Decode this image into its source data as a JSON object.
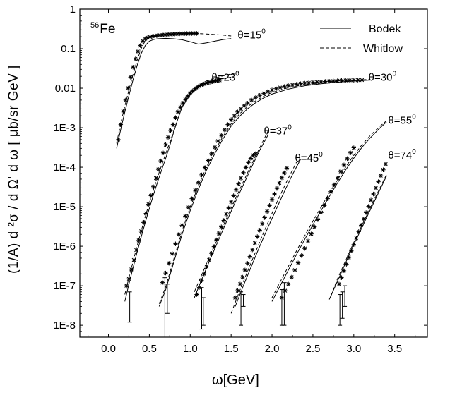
{
  "chart_data": {
    "type": "scatter",
    "xlabel": "ω[GeV]",
    "ylabel": "(1/A) d ²σ / d Ω' d ω [ μb/sr GeV ]",
    "nucleus": {
      "mass_number": "56",
      "symbol": "Fe"
    },
    "xlim": [
      -0.35,
      3.9
    ],
    "ylim": [
      5e-09,
      1
    ],
    "yscale": "log",
    "xticks": [
      0.0,
      0.5,
      1.0,
      1.5,
      2.0,
      2.5,
      3.0,
      3.5
    ],
    "xtick_labels": [
      "0.0",
      "0.5",
      "1.0",
      "1.5",
      "2.0",
      "2.5",
      "3.0",
      "3.5"
    ],
    "yticks": [
      1e-08,
      1e-07,
      1e-06,
      1e-05,
      0.0001,
      0.001,
      0.01,
      0.1,
      1
    ],
    "ytick_labels": [
      "1E-8",
      "1E-7",
      "1E-6",
      "1E-5",
      "1E-4",
      "1E-3",
      "0.01",
      "0.1",
      "1"
    ],
    "grid": false,
    "legend": {
      "position": "top-right",
      "entries": [
        {
          "label": "Bodek",
          "style": "solid"
        },
        {
          "label": "Whitlow",
          "style": "dashed"
        }
      ]
    },
    "series": [
      {
        "angle_label": "θ=15",
        "angle_exp": "0",
        "data_x": [
          0.12,
          0.15,
          0.18,
          0.21,
          0.24,
          0.27,
          0.3,
          0.33,
          0.36,
          0.39,
          0.42,
          0.45,
          0.48,
          0.51,
          0.54,
          0.57,
          0.6,
          0.63,
          0.66,
          0.69,
          0.72,
          0.75,
          0.78,
          0.81,
          0.84,
          0.87,
          0.9,
          0.93,
          0.96,
          0.99,
          1.02,
          1.05,
          1.08
        ],
        "data_y": [
          0.0005,
          0.0012,
          0.0026,
          0.005,
          0.01,
          0.019,
          0.034,
          0.055,
          0.085,
          0.12,
          0.155,
          0.178,
          0.19,
          0.198,
          0.205,
          0.21,
          0.215,
          0.218,
          0.222,
          0.225,
          0.228,
          0.23,
          0.232,
          0.235,
          0.237,
          0.238,
          0.24,
          0.24,
          0.241,
          0.242,
          0.242,
          0.243,
          0.243
        ],
        "bodek_x": [
          0.1,
          0.15,
          0.2,
          0.25,
          0.3,
          0.35,
          0.4,
          0.45,
          0.5,
          0.55,
          0.6,
          0.7,
          0.8,
          0.9,
          1.0,
          1.1,
          1.2,
          1.3,
          1.4,
          1.5
        ],
        "bodek_y": [
          0.0003,
          0.0009,
          0.0025,
          0.0065,
          0.016,
          0.037,
          0.075,
          0.12,
          0.155,
          0.17,
          0.178,
          0.182,
          0.178,
          0.168,
          0.15,
          0.13,
          0.14,
          0.155,
          0.17,
          0.18
        ],
        "whitlow_x": [
          0.1,
          0.15,
          0.2,
          0.25,
          0.3,
          0.35,
          0.4,
          0.45,
          0.5,
          0.55,
          0.6,
          0.7,
          0.8,
          0.9,
          1.0,
          1.1,
          1.2,
          1.3,
          1.4,
          1.5
        ],
        "whitlow_y": [
          0.0004,
          0.0013,
          0.0035,
          0.009,
          0.022,
          0.05,
          0.1,
          0.16,
          0.2,
          0.22,
          0.23,
          0.24,
          0.245,
          0.245,
          0.245,
          0.24,
          0.235,
          0.228,
          0.22,
          0.21
        ]
      },
      {
        "angle_label": "θ=23",
        "angle_exp": "0",
        "data_x": [
          0.22,
          0.25,
          0.28,
          0.31,
          0.34,
          0.37,
          0.4,
          0.43,
          0.46,
          0.49,
          0.52,
          0.55,
          0.58,
          0.61,
          0.64,
          0.67,
          0.7,
          0.73,
          0.76,
          0.79,
          0.82,
          0.85,
          0.88,
          0.91,
          0.94,
          0.97,
          1.0,
          1.03,
          1.06,
          1.09,
          1.12,
          1.15,
          1.18,
          1.21,
          1.24,
          1.27,
          1.3,
          1.33,
          1.36
        ],
        "data_y": [
          1e-07,
          1.5e-07,
          2.6e-07,
          4.5e-07,
          8e-07,
          1.4e-06,
          2.4e-06,
          4e-06,
          6.8e-06,
          1.15e-05,
          1.9e-05,
          3.2e-05,
          5.3e-05,
          8.8e-05,
          0.000145,
          0.00023,
          0.00037,
          0.00057,
          0.00085,
          0.0012,
          0.0018,
          0.0025,
          0.0033,
          0.0042,
          0.0052,
          0.0063,
          0.0075,
          0.0086,
          0.0097,
          0.0107,
          0.0116,
          0.0124,
          0.0131,
          0.0137,
          0.0142,
          0.0147,
          0.0151,
          0.0155,
          0.0158
        ],
        "data_err_x": [
          0.26
        ],
        "data_err_lo": [
          1.2e-08
        ],
        "data_err_hi": [
          7e-08
        ],
        "bodek_x": [
          0.2,
          0.25,
          0.3,
          0.35,
          0.4,
          0.45,
          0.5,
          0.55,
          0.6,
          0.65,
          0.7,
          0.75,
          0.8,
          0.85,
          0.9,
          1.0,
          1.1,
          1.2,
          1.3,
          1.4,
          1.5
        ],
        "bodek_y": [
          4e-08,
          1.1e-07,
          2.8e-07,
          7e-07,
          1.7e-06,
          4e-06,
          9e-06,
          2e-05,
          4.2e-05,
          8.5e-05,
          0.00017,
          0.00035,
          0.0008,
          0.0017,
          0.0033,
          0.0068,
          0.0105,
          0.0135,
          0.0158,
          0.0175,
          0.019
        ],
        "whitlow_x": [
          0.2,
          0.25,
          0.3,
          0.35,
          0.4,
          0.45,
          0.5,
          0.55,
          0.6,
          0.65,
          0.7,
          0.75,
          0.8,
          0.85,
          0.9,
          1.0,
          1.1,
          1.2,
          1.3,
          1.4,
          1.5,
          1.6
        ],
        "whitlow_y": [
          6e-08,
          1.6e-07,
          4e-07,
          1e-06,
          2.4e-06,
          5.6e-06,
          1.25e-05,
          2.7e-05,
          5.6e-05,
          0.000112,
          0.00022,
          0.00042,
          0.00085,
          0.0017,
          0.0034,
          0.0075,
          0.0118,
          0.0153,
          0.018,
          0.0205,
          0.023,
          0.025
        ]
      },
      {
        "angle_label": "θ=30",
        "angle_exp": "0",
        "data_x": [
          0.66,
          0.7,
          0.74,
          0.78,
          0.82,
          0.86,
          0.9,
          0.94,
          0.98,
          1.02,
          1.06,
          1.1,
          1.14,
          1.18,
          1.22,
          1.26,
          1.3,
          1.34,
          1.38,
          1.42,
          1.46,
          1.5,
          1.54,
          1.58,
          1.62,
          1.66,
          1.7,
          1.75,
          1.8,
          1.85,
          1.9,
          1.95,
          2.0,
          2.05,
          2.1,
          2.15,
          2.2,
          2.25,
          2.3,
          2.35,
          2.4,
          2.45,
          2.5,
          2.55,
          2.6,
          2.65,
          2.7,
          2.75,
          2.8,
          2.85,
          2.9,
          2.95,
          3.0,
          3.05,
          3.1
        ],
        "data_y": [
          1.2e-07,
          2.1e-07,
          3.7e-07,
          6.5e-07,
          1.15e-06,
          2e-06,
          3.4e-06,
          5.8e-06,
          9.6e-06,
          1.6e-05,
          2.6e-05,
          4.1e-05,
          6.4e-05,
          9.8e-05,
          0.000148,
          0.00022,
          0.00032,
          0.00046,
          0.00064,
          0.00088,
          0.0012,
          0.0016,
          0.002,
          0.0025,
          0.003,
          0.0036,
          0.0042,
          0.005,
          0.0058,
          0.0066,
          0.0074,
          0.0082,
          0.009,
          0.0097,
          0.0104,
          0.011,
          0.0116,
          0.0121,
          0.0126,
          0.013,
          0.0134,
          0.0137,
          0.014,
          0.0143,
          0.0146,
          0.0148,
          0.015,
          0.0152,
          0.0154,
          0.0156,
          0.0157,
          0.0158,
          0.0159,
          0.016,
          0.0161
        ],
        "data_err_x": [
          0.69,
          0.72
        ],
        "data_err_lo": [
          5e-09,
          2e-08
        ],
        "data_err_hi": [
          1.6e-07,
          1.1e-07
        ],
        "bodek_x": [
          0.62,
          0.7,
          0.8,
          0.9,
          1.0,
          1.1,
          1.2,
          1.3,
          1.4,
          1.5,
          1.6,
          1.7,
          1.8,
          1.9,
          2.0,
          2.2,
          2.4,
          2.6,
          2.8,
          3.0,
          3.2
        ],
        "bodek_y": [
          3e-08,
          8e-08,
          4e-07,
          2e-06,
          8e-06,
          2.8e-05,
          8.5e-05,
          0.00022,
          0.00052,
          0.0011,
          0.0019,
          0.003,
          0.0043,
          0.0057,
          0.0071,
          0.0095,
          0.0115,
          0.013,
          0.0142,
          0.0152,
          0.016
        ],
        "whitlow_x": [
          0.62,
          0.7,
          0.8,
          0.9,
          1.0,
          1.1,
          1.2,
          1.3,
          1.4,
          1.5,
          1.6,
          1.7,
          1.8,
          1.9,
          2.0,
          2.2,
          2.4,
          2.6,
          2.8,
          3.0,
          3.2
        ],
        "whitlow_y": [
          3.5e-08,
          9.5e-08,
          4.8e-07,
          2.4e-06,
          9.8e-06,
          3.4e-05,
          0.000102,
          0.00026,
          0.0006,
          0.00125,
          0.0022,
          0.0034,
          0.0048,
          0.0063,
          0.0078,
          0.0103,
          0.0123,
          0.0138,
          0.015,
          0.0159,
          0.0167
        ]
      },
      {
        "angle_label": "θ=37",
        "angle_exp": "0",
        "data_x": [
          1.08,
          1.11,
          1.14,
          1.17,
          1.2,
          1.23,
          1.26,
          1.29,
          1.32,
          1.35,
          1.38,
          1.41,
          1.44,
          1.47,
          1.5,
          1.53,
          1.56,
          1.59,
          1.62,
          1.65,
          1.68,
          1.71,
          1.74,
          1.77,
          1.8
        ],
        "data_y": [
          6e-08,
          9e-08,
          1.35e-07,
          2e-07,
          3e-07,
          4.5e-07,
          6.6e-07,
          9.8e-07,
          1.45e-06,
          2.1e-06,
          3.1e-06,
          4.5e-06,
          6.5e-06,
          9.3e-06,
          1.33e-05,
          1.9e-05,
          2.7e-05,
          3.8e-05,
          5.3e-05,
          7.3e-05,
          9.9e-05,
          0.000132,
          0.000168,
          0.0002,
          0.00022
        ],
        "data_err_x": [
          1.14,
          1.16
        ],
        "data_err_lo": [
          8e-09,
          1e-08
        ],
        "data_err_hi": [
          9e-08,
          5e-08
        ],
        "bodek_x": [
          1.05,
          1.15,
          1.25,
          1.35,
          1.45,
          1.55,
          1.65,
          1.75,
          1.85,
          1.95
        ],
        "bodek_y": [
          5e-08,
          1.6e-07,
          5e-07,
          1.5e-06,
          4.5e-06,
          1.3e-05,
          3.6e-05,
          0.0001,
          0.00027,
          0.00065
        ],
        "whitlow_x": [
          1.05,
          1.15,
          1.25,
          1.35,
          1.45,
          1.55,
          1.65,
          1.75,
          1.85,
          1.95
        ],
        "whitlow_y": [
          7e-08,
          2.1e-07,
          6.3e-07,
          1.85e-06,
          5.4e-06,
          1.55e-05,
          4.3e-05,
          0.000118,
          0.00031,
          0.00082
        ]
      },
      {
        "angle_label": "θ=45",
        "angle_exp": "0",
        "data_x": [
          1.55,
          1.58,
          1.61,
          1.64,
          1.67,
          1.7,
          1.73,
          1.76,
          1.79,
          1.82,
          1.85,
          1.88,
          1.91,
          1.94,
          1.97,
          2.0,
          2.03,
          2.06,
          2.09,
          2.12,
          2.15,
          2.18
        ],
        "data_y": [
          5e-08,
          7.5e-08,
          1.1e-07,
          1.65e-07,
          2.5e-07,
          3.7e-07,
          5.5e-07,
          8.1e-07,
          1.2e-06,
          1.75e-06,
          2.55e-06,
          3.7e-06,
          5.3e-06,
          7.6e-06,
          1.08e-05,
          1.52e-05,
          2.1e-05,
          2.9e-05,
          4e-05,
          5.4e-05,
          7.2e-05,
          9.5e-05
        ],
        "data_err_x": [
          1.62,
          1.65
        ],
        "data_err_lo": [
          1e-08,
          3e-08
        ],
        "data_err_hi": [
          7e-08,
          6e-08
        ],
        "bodek_x": [
          1.55,
          1.65,
          1.75,
          1.85,
          1.95,
          2.05,
          2.15,
          2.25,
          2.35
        ],
        "bodek_y": [
          3e-08,
          1e-07,
          3.2e-07,
          1e-06,
          3e-06,
          8.5e-06,
          2.4e-05,
          6.5e-05,
          0.00016
        ],
        "whitlow_x": [
          1.5,
          1.6,
          1.7,
          1.8,
          1.9,
          2.0,
          2.1,
          2.2,
          2.3
        ],
        "whitlow_y": [
          2e-08,
          7e-08,
          2.3e-07,
          7.3e-07,
          2.3e-06,
          6.8e-06,
          1.95e-05,
          5.3e-05,
          0.000135
        ]
      },
      {
        "angle_label": "θ=55",
        "angle_exp": "0",
        "data_x": [
          2.12,
          2.16,
          2.2,
          2.24,
          2.28,
          2.32,
          2.36,
          2.4,
          2.44,
          2.48,
          2.52,
          2.56,
          2.6,
          2.64,
          2.68,
          2.72,
          2.76,
          2.8,
          2.84,
          2.88,
          2.92,
          2.96,
          3.0
        ],
        "data_y": [
          5e-08,
          7.5e-08,
          1.1e-07,
          1.65e-07,
          2.5e-07,
          3.8e-07,
          5.8e-07,
          8.8e-07,
          1.35e-06,
          2.05e-06,
          3.1e-06,
          4.7e-06,
          7.1e-06,
          1.07e-05,
          1.6e-05,
          2.4e-05,
          3.6e-05,
          5.3e-05,
          7.8e-05,
          0.000114,
          0.000165,
          0.00023,
          0.00031
        ],
        "data_err_x": [
          2.12,
          2.15
        ],
        "data_err_lo": [
          1e-08,
          1e-08
        ],
        "data_err_hi": [
          8e-08,
          1.2e-07
        ],
        "bodek_x": [
          2.0,
          2.1,
          2.2,
          2.3,
          2.4,
          2.5,
          2.6,
          2.7,
          2.8,
          2.9,
          3.0,
          3.1,
          3.2,
          3.3,
          3.4
        ],
        "bodek_y": [
          4e-08,
          1e-07,
          2.5e-07,
          6.2e-07,
          1.5e-06,
          3.5e-06,
          8e-06,
          1.8e-05,
          4e-05,
          8.5e-05,
          0.00017,
          0.00032,
          0.00055,
          0.0009,
          0.0014
        ],
        "whitlow_x": [
          2.0,
          2.1,
          2.2,
          2.3,
          2.4,
          2.5,
          2.6,
          2.7,
          2.8,
          2.9,
          3.0,
          3.1,
          3.2,
          3.3,
          3.4
        ],
        "whitlow_y": [
          5e-08,
          1.25e-07,
          3.1e-07,
          7.7e-07,
          1.85e-06,
          4.3e-06,
          9.8e-06,
          2.2e-05,
          4.8e-05,
          0.0001,
          0.0002,
          0.00037,
          0.00063,
          0.001,
          0.0015
        ]
      },
      {
        "angle_label": "θ=74",
        "angle_exp": "0",
        "data_x": [
          2.82,
          2.85,
          2.88,
          2.91,
          2.94,
          2.97,
          3.0,
          3.03,
          3.06,
          3.09,
          3.12,
          3.15,
          3.18,
          3.21,
          3.24,
          3.27,
          3.3,
          3.33,
          3.36,
          3.39
        ],
        "data_y": [
          1.1e-07,
          1.6e-07,
          2.4e-07,
          3.5e-07,
          5.2e-07,
          7.6e-07,
          1.1e-06,
          1.6e-06,
          2.35e-06,
          3.4e-06,
          4.9e-06,
          7.1e-06,
          1.02e-05,
          1.47e-05,
          2.1e-05,
          3e-05,
          4.3e-05,
          6.1e-05,
          8.6e-05,
          0.00012
        ],
        "data_err_x": [
          2.83,
          2.86,
          2.89
        ],
        "data_err_lo": [
          1e-08,
          1.5e-08,
          3e-08
        ],
        "data_err_hi": [
          6e-08,
          7e-08,
          1e-07
        ],
        "bodek_x": [
          2.7,
          2.8,
          2.9,
          3.0,
          3.1,
          3.2,
          3.3,
          3.4
        ],
        "bodek_y": [
          4.5e-08,
          1.3e-07,
          3.8e-07,
          1.1e-06,
          3e-06,
          8.2e-06,
          2.2e-05,
          6e-05
        ],
        "whitlow_x": [
          2.72,
          2.8,
          2.9,
          3.0,
          3.1,
          3.2,
          3.3,
          3.4
        ],
        "whitlow_y": [
          5.5e-08,
          1.5e-07,
          4.3e-07,
          1.25e-06,
          3.4e-06,
          9.2e-06,
          2.45e-05,
          6.5e-05
        ]
      }
    ]
  }
}
